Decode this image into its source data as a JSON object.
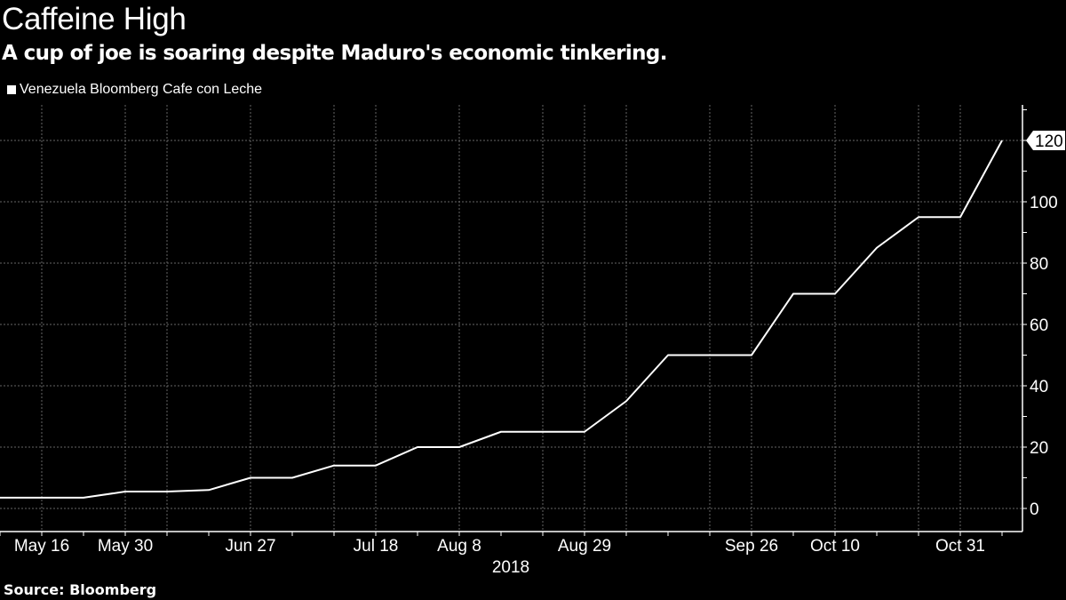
{
  "title": "Caffeine High",
  "subtitle": "A cup of joe is soaring despite Maduro's economic tinkering.",
  "source": "Source: Bloomberg",
  "chart_data": {
    "type": "line",
    "title": "Caffeine High",
    "subtitle": "A cup of joe is soaring despite Maduro's economic tinkering.",
    "series": [
      {
        "name": "Venezuela Bloomberg Cafe con Leche",
        "color": "#ffffff",
        "values": [
          3.5,
          3.5,
          3.5,
          5.5,
          5.5,
          6,
          10,
          10,
          14,
          14,
          20,
          20,
          25,
          25,
          25,
          35,
          50,
          50,
          50,
          70,
          70,
          85,
          95,
          95,
          120
        ]
      }
    ],
    "categories": [
      "",
      "May 16",
      "",
      "May 30",
      "",
      "",
      "Jun 27",
      "",
      "",
      "Jul 18",
      "",
      "Aug 8",
      "",
      "",
      "Aug 29",
      "",
      "",
      "",
      "Sep 26",
      "",
      "Oct 10",
      "",
      "",
      "Oct 31",
      ""
    ],
    "x_year_label": "2018",
    "yticks": [
      0,
      20,
      40,
      60,
      80,
      100,
      120
    ],
    "ylim": [
      -8,
      132
    ],
    "last_value_label": "120",
    "y_axis_side": "right",
    "grid": true,
    "legend_placement": "top-left",
    "background": "#000000",
    "grid_color": "#666666"
  }
}
